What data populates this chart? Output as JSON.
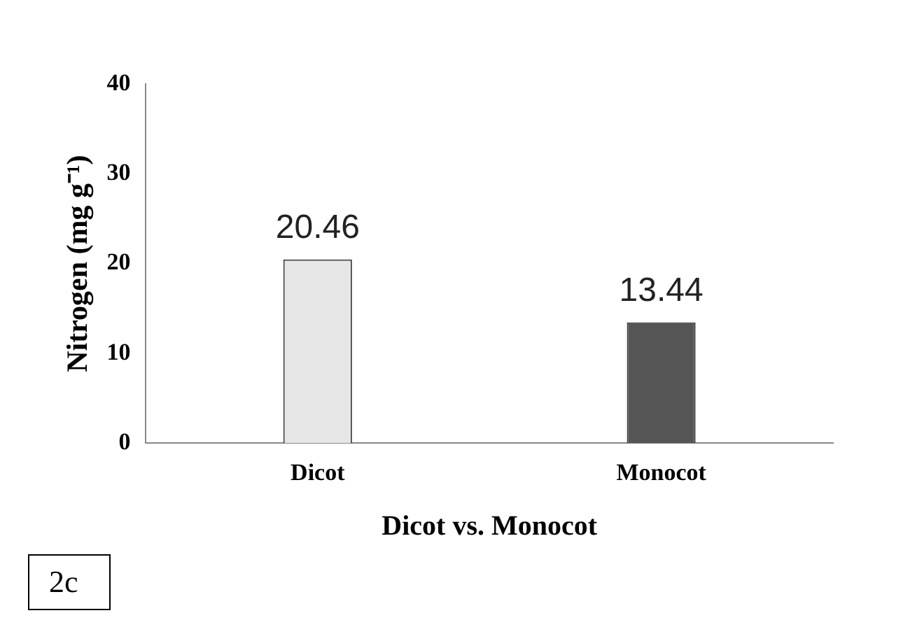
{
  "chart_data": {
    "type": "bar",
    "xlabel": "Dicot vs. Monocot",
    "ylabel": "Nitrogen (mg g⁻¹)",
    "categories": [
      "Dicot",
      "Monocot"
    ],
    "values": [
      20.46,
      13.44
    ],
    "colors": [
      "#e6e6e6",
      "#555555"
    ],
    "ylim": [
      0,
      40
    ],
    "yticks": [
      0,
      10,
      20,
      30,
      40
    ],
    "grid": false,
    "data_labels": true,
    "annotations": [
      "2c"
    ]
  }
}
